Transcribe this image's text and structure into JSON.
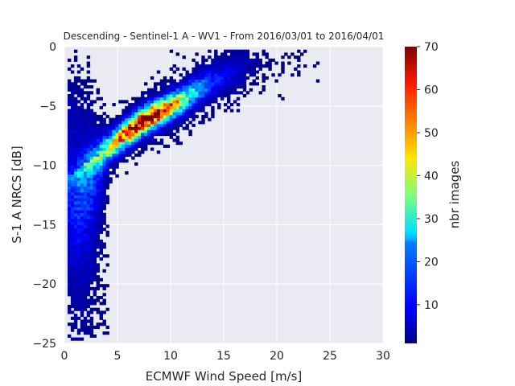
{
  "chart_data": {
    "type": "heatmap",
    "title": "Descending - Sentinel-1 A - WV1 - From 2016/03/01 to 2016/04/01",
    "xlabel": "ECMWF Wind Speed [m/s]",
    "ylabel": "S-1 A NRCS [dB]",
    "xlim": [
      0,
      30
    ],
    "ylim": [
      -25,
      0
    ],
    "xticks": [
      "0",
      "5",
      "10",
      "15",
      "20",
      "25",
      "30"
    ],
    "yticks": [
      "0",
      "−5",
      "−10",
      "−15",
      "−20",
      "−25"
    ],
    "colorbar": {
      "label": "nbr images",
      "min": 1,
      "max": 70,
      "ticks": [
        "10",
        "20",
        "30",
        "40",
        "50",
        "60",
        "70"
      ],
      "colormap": "jet"
    },
    "grid": true,
    "background": "#eaeaf2",
    "density_ridge": [
      {
        "x": 1.0,
        "y": -10.5
      },
      {
        "x": 2.0,
        "y": -9.8
      },
      {
        "x": 3.0,
        "y": -9.3
      },
      {
        "x": 4.0,
        "y": -8.6
      },
      {
        "x": 5.0,
        "y": -7.9
      },
      {
        "x": 6.0,
        "y": -7.2
      },
      {
        "x": 7.0,
        "y": -6.5
      },
      {
        "x": 8.0,
        "y": -6.0
      },
      {
        "x": 9.0,
        "y": -5.6
      },
      {
        "x": 10.0,
        "y": -5.1
      },
      {
        "x": 11.0,
        "y": -4.6
      },
      {
        "x": 12.0,
        "y": -4.0
      },
      {
        "x": 13.0,
        "y": -3.5
      },
      {
        "x": 14.0,
        "y": -3.0
      },
      {
        "x": 15.0,
        "y": -2.6
      },
      {
        "x": 16.0,
        "y": -2.2
      },
      {
        "x": 17.0,
        "y": -1.8
      },
      {
        "x": 18.0,
        "y": -1.4
      },
      {
        "x": 19.0,
        "y": -1.1
      },
      {
        "x": 20.0,
        "y": -0.8
      }
    ],
    "peak": {
      "x": 7.5,
      "y": -6.4,
      "count": 70
    }
  }
}
